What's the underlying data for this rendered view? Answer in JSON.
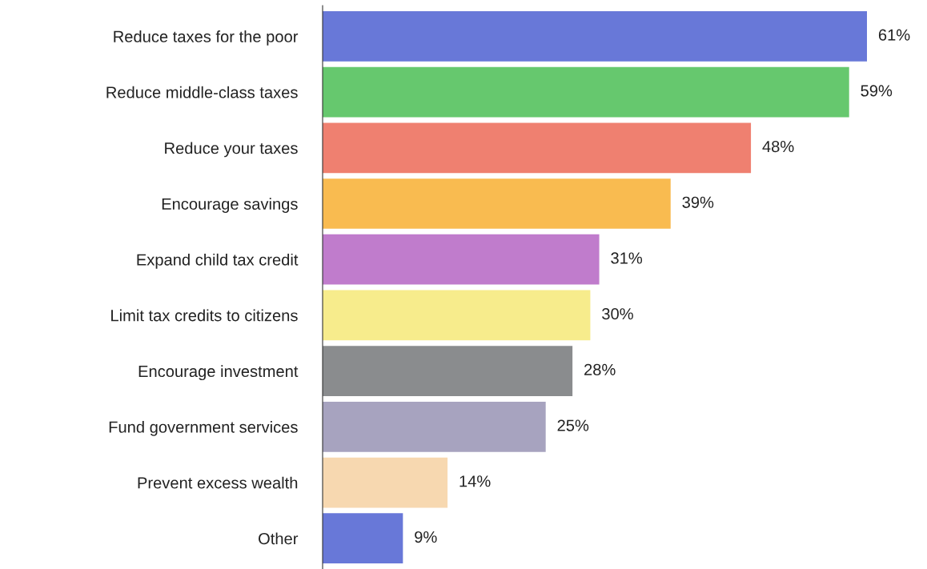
{
  "chart_data": {
    "type": "bar",
    "orientation": "horizontal",
    "categories": [
      "Reduce taxes for the poor",
      "Reduce middle-class taxes",
      "Reduce your taxes",
      "Encourage savings",
      "Expand child tax credit",
      "Limit tax credits to citizens",
      "Encourage investment",
      "Fund government services",
      "Prevent excess wealth",
      "Other"
    ],
    "values": [
      61,
      59,
      48,
      39,
      31,
      30,
      28,
      25,
      14,
      9
    ],
    "value_labels": [
      "61%",
      "59%",
      "48%",
      "39%",
      "31%",
      "30%",
      "28%",
      "25%",
      "14%",
      "9%"
    ],
    "colors": [
      "#6878d8",
      "#66c86e",
      "#ef8070",
      "#f9bb50",
      "#c07ccc",
      "#f7ec8c",
      "#8a8c8e",
      "#a7a3bf",
      "#f7d8b0",
      "#6878d8"
    ],
    "grid": false,
    "legend": false
  }
}
